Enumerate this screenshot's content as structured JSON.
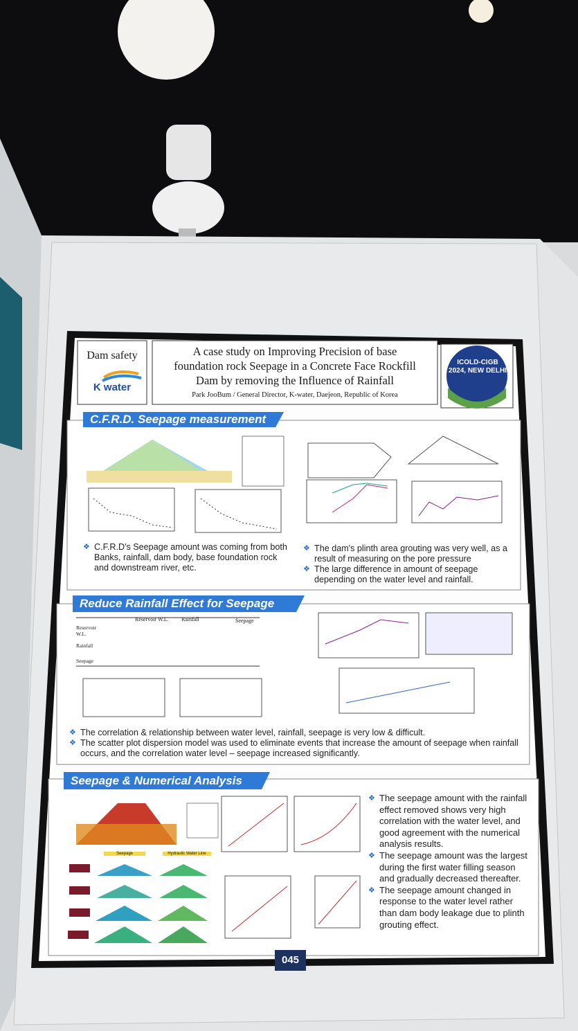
{
  "header": {
    "category": "Dam safety",
    "logo": "K water",
    "title_lines": [
      "A case study on Improving Precision of  base",
      "foundation rock Seepage in a Concrete Face Rockfill",
      "Dam by removing the Influence of Rainfall"
    ],
    "author": "Park JooBum  / General Director, K-water, Daejeon, Republic of Korea",
    "badge": [
      "ICOLD-CIGB",
      "2024, NEW DELHI"
    ]
  },
  "sections": [
    {
      "heading": "C.F.R.D. Seepage measurement",
      "bullets_left": [
        "C.F.R.D's Seepage amount was coming from both Banks, rainfall, dam body, base foundation rock and downstream river, etc."
      ],
      "bullets_right": [
        "The dam's plinth area grouting was very well, as a result of measuring on the pore pressure",
        "The large difference in amount of seepage depending on the water level and rainfall."
      ]
    },
    {
      "heading": "Reduce Rainfall Effect for Seepage",
      "table_columns": [
        "Reservoir W.L.",
        "Rainfall",
        "Seepage"
      ],
      "table_rows": [
        "Reservoir W.L.",
        "Rainfall",
        "Seepage"
      ],
      "bullets": [
        "The correlation & relationship between water level, rainfall, seepage is very low & difficult.",
        "The scatter plot dispersion model was used to eliminate events that increase the amount of seepage when rainfall occurs, and the correlation water level – seepage increased significantly."
      ]
    },
    {
      "heading": "Seepage & Numerical Analysis",
      "captions": [
        "Seepage",
        "Hydraulic Water Line"
      ],
      "bullets": [
        "The seepage amount with the rainfall effect removed shows very high correlation with the water level, and good agreement with the numerical analysis results.",
        "The seepage amount was the largest during the first water filling season and gradually decreased thereafter.",
        "The seepage amount changed in response to the water level rather than dam body leakage due to plinth grouting effect."
      ]
    }
  ],
  "poster_number": "045"
}
